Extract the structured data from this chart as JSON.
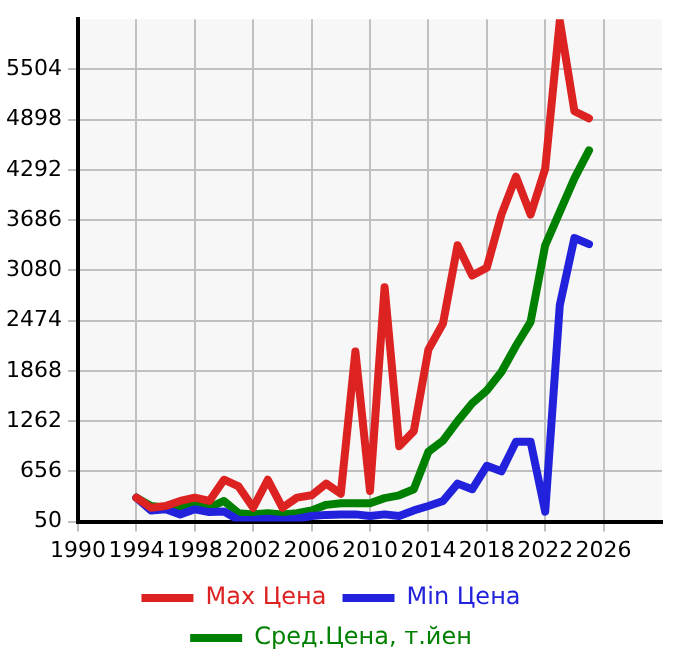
{
  "chart_data": {
    "type": "line",
    "x": [
      1994,
      1995,
      1996,
      1997,
      1998,
      1999,
      2000,
      2001,
      2002,
      2003,
      2004,
      2005,
      2006,
      2007,
      2008,
      2009,
      2010,
      2011,
      2012,
      2013,
      2014,
      2015,
      2016,
      2017,
      2018,
      2019,
      2020,
      2021,
      2022,
      2023,
      2024,
      2025
    ],
    "series": [
      {
        "name": "Max Цена",
        "color": "#dd2222",
        "values": [
          339,
          218,
          238,
          299,
          339,
          299,
          555,
          474,
          218,
          555,
          218,
          339,
          367,
          508,
          386,
          2103,
          420,
          2878,
          959,
          1141,
          2124,
          2440,
          3383,
          3019,
          3113,
          3753,
          4211,
          3753,
          4306,
          6090,
          5000,
          4914
        ]
      },
      {
        "name": "Min Цена",
        "color": "#2222dd",
        "values": [
          339,
          185,
          198,
          137,
          198,
          165,
          171,
          70,
          70,
          84,
          70,
          84,
          117,
          131,
          137,
          137,
          117,
          137,
          117,
          185,
          238,
          299,
          508,
          440,
          723,
          656,
          1013,
          1013,
          171,
          2662,
          3470,
          3397
        ]
      },
      {
        "name": "Сред.Цена, т.йен",
        "color": "#008000",
        "values": [
          339,
          238,
          218,
          218,
          266,
          218,
          299,
          151,
          137,
          151,
          137,
          151,
          185,
          252,
          272,
          272,
          272,
          333,
          367,
          440,
          892,
          1027,
          1262,
          1478,
          1632,
          1854,
          2171,
          2460,
          3383,
          3787,
          4191,
          4528
        ]
      }
    ],
    "xlim": [
      1990,
      2030
    ],
    "xticks": [
      1990,
      1994,
      1998,
      2002,
      2006,
      2010,
      2014,
      2018,
      2022,
      2026
    ],
    "ylim": [
      50,
      6110
    ],
    "yticks": [
      50,
      656,
      1262,
      1868,
      2474,
      3080,
      3686,
      4292,
      4898,
      5504
    ],
    "grid": true,
    "legend": "bottom",
    "marker": "none",
    "line_style": "solid"
  }
}
